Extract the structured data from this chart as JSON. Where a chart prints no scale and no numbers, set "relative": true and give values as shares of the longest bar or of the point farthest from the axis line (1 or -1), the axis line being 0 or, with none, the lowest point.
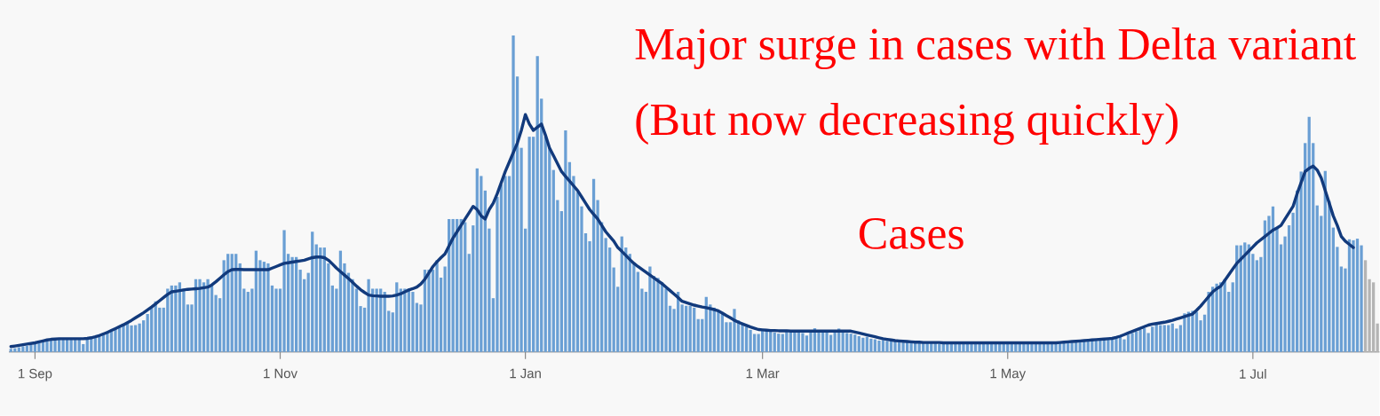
{
  "chart_data": {
    "type": "bar",
    "relative": true,
    "marker": "none",
    "annotations": [
      "Major surge in cases with Delta variant",
      "(But now decreasing quickly)",
      "Cases"
    ],
    "categories": [
      null,
      null,
      null,
      null,
      null,
      null,
      "1 Sep",
      null,
      null,
      null,
      null,
      null,
      null,
      null,
      null,
      null,
      null,
      null,
      null,
      null,
      null,
      null,
      null,
      null,
      null,
      null,
      null,
      null,
      null,
      null,
      null,
      null,
      null,
      null,
      null,
      null,
      null,
      null,
      null,
      null,
      null,
      null,
      null,
      null,
      null,
      null,
      null,
      null,
      null,
      null,
      null,
      null,
      null,
      null,
      null,
      null,
      null,
      null,
      null,
      null,
      null,
      null,
      null,
      null,
      null,
      null,
      null,
      "1 Nov",
      null,
      null,
      null,
      null,
      null,
      null,
      null,
      null,
      null,
      null,
      null,
      null,
      null,
      null,
      null,
      null,
      null,
      null,
      null,
      null,
      null,
      null,
      null,
      null,
      null,
      null,
      null,
      null,
      null,
      null,
      null,
      null,
      null,
      null,
      null,
      null,
      null,
      null,
      null,
      null,
      null,
      null,
      null,
      null,
      null,
      null,
      null,
      null,
      null,
      null,
      null,
      null,
      null,
      null,
      null,
      null,
      null,
      null,
      null,
      null,
      "1 Jan",
      null,
      null,
      null,
      null,
      null,
      null,
      null,
      null,
      null,
      null,
      null,
      null,
      null,
      null,
      null,
      null,
      null,
      null,
      null,
      null,
      null,
      null,
      null,
      null,
      null,
      null,
      null,
      null,
      null,
      null,
      null,
      null,
      null,
      null,
      null,
      null,
      null,
      null,
      null,
      null,
      null,
      null,
      null,
      null,
      null,
      null,
      null,
      null,
      null,
      null,
      null,
      null,
      null,
      null,
      null,
      null,
      null,
      null,
      "1 Mar",
      null,
      null,
      null,
      null,
      null,
      null,
      null,
      null,
      null,
      null,
      null,
      null,
      null,
      null,
      null,
      null,
      null,
      null,
      null,
      null,
      null,
      null,
      null,
      null,
      null,
      null,
      null,
      null,
      null,
      null,
      null,
      null,
      null,
      null,
      null,
      null,
      null,
      null,
      null,
      null,
      null,
      null,
      null,
      null,
      null,
      null,
      null,
      null,
      null,
      null,
      null,
      null,
      null,
      null,
      null,
      null,
      null,
      null,
      null,
      null,
      "1 May",
      null,
      null,
      null,
      null,
      null,
      null,
      null,
      null,
      null,
      null,
      null,
      null,
      null,
      null,
      null,
      null,
      null,
      null,
      null,
      null,
      null,
      null,
      null,
      null,
      null,
      null,
      null,
      null,
      null,
      null,
      null,
      null,
      null,
      null,
      null,
      null,
      null,
      null,
      null,
      null,
      null,
      null,
      null,
      null,
      null,
      null,
      null,
      null,
      null,
      null,
      null,
      null,
      null,
      null,
      null,
      null,
      null,
      null,
      null,
      null,
      "1 Jul",
      null,
      null,
      null,
      null,
      null,
      null,
      null,
      null,
      null,
      null,
      null,
      null,
      null,
      null,
      null,
      null,
      null,
      null,
      null,
      null,
      null,
      null,
      null,
      null,
      null,
      null,
      null,
      null,
      null,
      null,
      null
    ],
    "series": [
      {
        "colors": [
          "#6a9fd4",
          "#6a9fd4",
          "#6a9fd4",
          "#6a9fd4",
          "#6a9fd4",
          "#6a9fd4",
          "#6a9fd4",
          "#6a9fd4",
          "#6a9fd4",
          "#6a9fd4",
          "#6a9fd4",
          "#6a9fd4",
          "#6a9fd4",
          "#6a9fd4",
          "#6a9fd4",
          "#6a9fd4",
          "#6a9fd4",
          "#6a9fd4",
          "#6a9fd4",
          "#6a9fd4",
          "#6a9fd4",
          "#6a9fd4",
          "#6a9fd4",
          "#6a9fd4",
          "#6a9fd4",
          "#6a9fd4",
          "#6a9fd4",
          "#6a9fd4",
          "#6a9fd4",
          "#6a9fd4",
          "#6a9fd4",
          "#6a9fd4",
          "#6a9fd4",
          "#6a9fd4",
          "#6a9fd4",
          "#6a9fd4",
          "#6a9fd4",
          "#6a9fd4",
          "#6a9fd4",
          "#6a9fd4",
          "#6a9fd4",
          "#6a9fd4",
          "#6a9fd4",
          "#6a9fd4",
          "#6a9fd4",
          "#6a9fd4",
          "#6a9fd4",
          "#6a9fd4",
          "#6a9fd4",
          "#6a9fd4",
          "#6a9fd4",
          "#6a9fd4",
          "#6a9fd4",
          "#6a9fd4",
          "#6a9fd4",
          "#6a9fd4",
          "#6a9fd4",
          "#6a9fd4",
          "#6a9fd4",
          "#6a9fd4",
          "#6a9fd4",
          "#6a9fd4",
          "#6a9fd4",
          "#6a9fd4",
          "#6a9fd4",
          "#6a9fd4",
          "#6a9fd4",
          "#6a9fd4",
          "#6a9fd4",
          "#6a9fd4",
          "#6a9fd4",
          "#6a9fd4",
          "#6a9fd4",
          "#6a9fd4",
          "#6a9fd4",
          "#6a9fd4",
          "#6a9fd4",
          "#6a9fd4",
          "#6a9fd4",
          "#6a9fd4",
          "#6a9fd4",
          "#6a9fd4",
          "#6a9fd4",
          "#6a9fd4",
          "#6a9fd4",
          "#6a9fd4",
          "#6a9fd4",
          "#6a9fd4",
          "#6a9fd4",
          "#6a9fd4",
          "#6a9fd4",
          "#6a9fd4",
          "#6a9fd4",
          "#6a9fd4",
          "#6a9fd4",
          "#6a9fd4",
          "#6a9fd4",
          "#6a9fd4",
          "#6a9fd4",
          "#6a9fd4",
          "#6a9fd4",
          "#6a9fd4",
          "#6a9fd4",
          "#6a9fd4",
          "#6a9fd4",
          "#6a9fd4",
          "#6a9fd4",
          "#6a9fd4",
          "#6a9fd4",
          "#6a9fd4",
          "#6a9fd4",
          "#6a9fd4",
          "#6a9fd4",
          "#6a9fd4",
          "#6a9fd4",
          "#6a9fd4",
          "#6a9fd4",
          "#6a9fd4",
          "#6a9fd4",
          "#6a9fd4",
          "#6a9fd4",
          "#6a9fd4",
          "#6a9fd4",
          "#6a9fd4",
          "#6a9fd4",
          "#6a9fd4",
          "#6a9fd4",
          "#6a9fd4",
          "#6a9fd4",
          "#6a9fd4",
          "#6a9fd4",
          "#6a9fd4",
          "#6a9fd4",
          "#6a9fd4",
          "#6a9fd4",
          "#6a9fd4",
          "#6a9fd4",
          "#6a9fd4",
          "#6a9fd4",
          "#6a9fd4",
          "#6a9fd4",
          "#6a9fd4",
          "#6a9fd4",
          "#6a9fd4",
          "#6a9fd4",
          "#6a9fd4",
          "#6a9fd4",
          "#6a9fd4",
          "#6a9fd4",
          "#6a9fd4",
          "#6a9fd4",
          "#6a9fd4",
          "#6a9fd4",
          "#6a9fd4",
          "#6a9fd4",
          "#6a9fd4",
          "#6a9fd4",
          "#6a9fd4",
          "#6a9fd4",
          "#6a9fd4",
          "#6a9fd4",
          "#6a9fd4",
          "#6a9fd4",
          "#6a9fd4",
          "#6a9fd4",
          "#6a9fd4",
          "#6a9fd4",
          "#6a9fd4",
          "#6a9fd4",
          "#6a9fd4",
          "#6a9fd4",
          "#6a9fd4",
          "#6a9fd4",
          "#6a9fd4",
          "#6a9fd4",
          "#6a9fd4",
          "#6a9fd4",
          "#6a9fd4",
          "#6a9fd4",
          "#6a9fd4",
          "#6a9fd4",
          "#6a9fd4",
          "#6a9fd4",
          "#6a9fd4",
          "#6a9fd4",
          "#6a9fd4",
          "#6a9fd4",
          "#6a9fd4",
          "#6a9fd4",
          "#6a9fd4",
          "#6a9fd4",
          "#6a9fd4",
          "#6a9fd4",
          "#6a9fd4",
          "#6a9fd4",
          "#6a9fd4",
          "#6a9fd4",
          "#6a9fd4",
          "#6a9fd4",
          "#6a9fd4",
          "#6a9fd4",
          "#6a9fd4",
          "#6a9fd4",
          "#6a9fd4",
          "#6a9fd4",
          "#6a9fd4",
          "#6a9fd4",
          "#6a9fd4",
          "#6a9fd4",
          "#6a9fd4",
          "#6a9fd4",
          "#6a9fd4",
          "#6a9fd4",
          "#6a9fd4",
          "#6a9fd4",
          "#6a9fd4",
          "#6a9fd4",
          "#6a9fd4",
          "#6a9fd4",
          "#6a9fd4",
          "#6a9fd4",
          "#6a9fd4",
          "#6a9fd4",
          "#6a9fd4",
          "#6a9fd4",
          "#6a9fd4",
          "#6a9fd4",
          "#6a9fd4",
          "#6a9fd4",
          "#6a9fd4",
          "#6a9fd4",
          "#6a9fd4",
          "#6a9fd4",
          "#6a9fd4",
          "#6a9fd4",
          "#6a9fd4",
          "#6a9fd4",
          "#6a9fd4",
          "#6a9fd4",
          "#6a9fd4",
          "#6a9fd4",
          "#6a9fd4",
          "#6a9fd4",
          "#6a9fd4",
          "#6a9fd4",
          "#6a9fd4",
          "#6a9fd4",
          "#6a9fd4",
          "#6a9fd4",
          "#6a9fd4",
          "#6a9fd4",
          "#6a9fd4",
          "#6a9fd4",
          "#6a9fd4",
          "#6a9fd4",
          "#6a9fd4",
          "#6a9fd4",
          "#6a9fd4",
          "#6a9fd4",
          "#6a9fd4",
          "#6a9fd4",
          "#6a9fd4",
          "#6a9fd4",
          "#6a9fd4",
          "#6a9fd4",
          "#6a9fd4",
          "#6a9fd4",
          "#6a9fd4",
          "#6a9fd4",
          "#6a9fd4",
          "#6a9fd4",
          "#6a9fd4",
          "#6a9fd4",
          "#6a9fd4",
          "#6a9fd4",
          "#6a9fd4",
          "#6a9fd4",
          "#6a9fd4",
          "#6a9fd4",
          "#6a9fd4",
          "#6a9fd4",
          "#6a9fd4",
          "#6a9fd4",
          "#6a9fd4",
          "#6a9fd4",
          "#6a9fd4",
          "#6a9fd4",
          "#6a9fd4",
          "#6a9fd4",
          "#6a9fd4",
          "#6a9fd4",
          "#6a9fd4",
          "#6a9fd4",
          "#6a9fd4",
          "#6a9fd4",
          "#6a9fd4",
          "#6a9fd4",
          "#6a9fd4",
          "#6a9fd4",
          "#6a9fd4",
          "#6a9fd4",
          "#6a9fd4",
          "#6a9fd4",
          "#6a9fd4",
          "#6a9fd4",
          "#6a9fd4",
          "#6a9fd4",
          "#6a9fd4",
          "#6a9fd4",
          "#6a9fd4",
          "#6a9fd4",
          "#6a9fd4",
          "#6a9fd4",
          "#6a9fd4",
          "#6a9fd4",
          "#6a9fd4",
          "#6a9fd4",
          "#6a9fd4",
          "#6a9fd4",
          "#6a9fd4",
          "#6a9fd4",
          "#6a9fd4",
          "#6a9fd4",
          "#6a9fd4",
          "#6a9fd4",
          "#6a9fd4",
          "#6a9fd4",
          "#6a9fd4",
          "#6a9fd4",
          "#6a9fd4",
          "#6a9fd4",
          "#6a9fd4",
          "#6a9fd4",
          "#6a9fd4",
          "#6a9fd4",
          "#6a9fd4",
          "#6a9fd4",
          "#b4b4b4",
          "#b4b4b4",
          "#b4b4b4",
          "#b4b4b4"
        ],
        "values": [
          0.01,
          0.012,
          0.015,
          0.018,
          0.02,
          0.022,
          0.025,
          0.03,
          0.033,
          0.036,
          0.04,
          0.042,
          0.043,
          0.042,
          0.04,
          0.042,
          0.043,
          0.04,
          0.025,
          0.042,
          0.045,
          0.05,
          0.055,
          0.06,
          0.065,
          0.07,
          0.075,
          0.08,
          0.085,
          0.09,
          0.084,
          0.085,
          0.09,
          0.1,
          0.12,
          0.14,
          0.16,
          0.14,
          0.14,
          0.2,
          0.21,
          0.21,
          0.22,
          0.2,
          0.15,
          0.15,
          0.23,
          0.23,
          0.22,
          0.23,
          0.21,
          0.18,
          0.17,
          0.29,
          0.31,
          0.31,
          0.31,
          0.28,
          0.2,
          0.19,
          0.2,
          0.32,
          0.29,
          0.285,
          0.28,
          0.21,
          0.2,
          0.2,
          0.385,
          0.31,
          0.3,
          0.3,
          0.26,
          0.23,
          0.25,
          0.38,
          0.34,
          0.33,
          0.33,
          0.28,
          0.21,
          0.2,
          0.32,
          0.28,
          0.25,
          0.23,
          0.2,
          0.145,
          0.14,
          0.23,
          0.2,
          0.2,
          0.2,
          0.19,
          0.13,
          0.125,
          0.22,
          0.2,
          0.2,
          0.2,
          0.19,
          0.155,
          0.15,
          0.26,
          0.26,
          0.26,
          0.29,
          0.235,
          0.27,
          0.42,
          0.42,
          0.42,
          0.42,
          0.41,
          0.31,
          0.4,
          0.58,
          0.556,
          0.51,
          0.39,
          0.17,
          0.49,
          0.53,
          0.556,
          0.556,
          1.0,
          0.87,
          0.645,
          0.39,
          0.68,
          0.68,
          0.935,
          0.8,
          0.68,
          0.645,
          0.575,
          0.48,
          0.445,
          0.7,
          0.6,
          0.556,
          0.505,
          0.46,
          0.375,
          0.35,
          0.547,
          0.48,
          0.41,
          0.36,
          0.33,
          0.267,
          0.206,
          0.365,
          0.33,
          0.31,
          0.28,
          0.253,
          0.2,
          0.19,
          0.27,
          0.24,
          0.234,
          0.22,
          0.2,
          0.146,
          0.136,
          0.19,
          0.15,
          0.146,
          0.146,
          0.14,
          0.104,
          0.104,
          0.174,
          0.15,
          0.14,
          0.13,
          0.12,
          0.094,
          0.094,
          0.136,
          0.1,
          0.09,
          0.08,
          0.07,
          0.057,
          0.057,
          0.07,
          0.068,
          0.066,
          0.062,
          0.058,
          0.057,
          0.068,
          0.066,
          0.066,
          0.065,
          0.06,
          0.052,
          0.066,
          0.075,
          0.066,
          0.066,
          0.062,
          0.054,
          0.066,
          0.074,
          0.066,
          0.06,
          0.058,
          0.055,
          0.05,
          0.045,
          0.048,
          0.042,
          0.04,
          0.036,
          0.038,
          0.035,
          0.038,
          0.036,
          0.033,
          0.03,
          0.034,
          0.032,
          0.03,
          0.028,
          0.03,
          0.031,
          0.03,
          0.029,
          0.026,
          0.028,
          0.03,
          0.03,
          0.028,
          0.027,
          0.029,
          0.025,
          0.028,
          0.03,
          0.029,
          0.028,
          0.028,
          0.025,
          0.029,
          0.03,
          0.029,
          0.03,
          0.028,
          0.026,
          0.03,
          0.029,
          0.031,
          0.03,
          0.028,
          0.03,
          0.03,
          0.031,
          0.029,
          0.03,
          0.032,
          0.031,
          0.033,
          0.03,
          0.034,
          0.036,
          0.038,
          0.04,
          0.042,
          0.04,
          0.042,
          0.044,
          0.045,
          0.046,
          0.05,
          0.048,
          0.04,
          0.055,
          0.06,
          0.065,
          0.07,
          0.075,
          0.06,
          0.08,
          0.09,
          0.085,
          0.085,
          0.085,
          0.09,
          0.074,
          0.085,
          0.122,
          0.127,
          0.13,
          0.127,
          0.1,
          0.118,
          0.19,
          0.206,
          0.216,
          0.22,
          0.23,
          0.19,
          0.22,
          0.337,
          0.337,
          0.346,
          0.34,
          0.31,
          0.29,
          0.3,
          0.416,
          0.43,
          0.46,
          0.39,
          0.34,
          0.365,
          0.4,
          0.44,
          0.51,
          0.57,
          0.66,
          0.743,
          0.66,
          0.463,
          0.43,
          0.572,
          0.477,
          0.393,
          0.332,
          0.27,
          0.264,
          0.356,
          0.353,
          0.358,
          0.337,
          0.29,
          0.23,
          0.22,
          0.09
        ]
      },
      {
        "type": "line",
        "color": "#123a7c",
        "values": [
          0.017,
          0.019,
          0.021,
          0.023,
          0.025,
          0.027,
          0.029,
          0.032,
          0.035,
          0.038,
          0.04,
          0.041,
          0.042,
          0.042,
          0.042,
          0.042,
          0.042,
          0.042,
          0.042,
          0.043,
          0.045,
          0.048,
          0.052,
          0.057,
          0.062,
          0.068,
          0.074,
          0.08,
          0.086,
          0.093,
          0.1,
          0.108,
          0.116,
          0.124,
          0.133,
          0.142,
          0.152,
          0.162,
          0.172,
          0.182,
          0.19,
          0.192,
          0.194,
          0.196,
          0.198,
          0.199,
          0.2,
          0.201,
          0.203,
          0.205,
          0.212,
          0.222,
          0.233,
          0.244,
          0.254,
          0.26,
          0.261,
          0.261,
          0.26,
          0.26,
          0.26,
          0.26,
          0.26,
          0.26,
          0.26,
          0.265,
          0.27,
          0.275,
          0.28,
          0.282,
          0.284,
          0.286,
          0.288,
          0.29,
          0.294,
          0.298,
          0.3,
          0.3,
          0.298,
          0.29,
          0.278,
          0.265,
          0.254,
          0.243,
          0.232,
          0.22,
          0.208,
          0.197,
          0.188,
          0.18,
          0.178,
          0.177,
          0.176,
          0.176,
          0.176,
          0.177,
          0.18,
          0.184,
          0.19,
          0.196,
          0.2,
          0.205,
          0.215,
          0.23,
          0.25,
          0.27,
          0.285,
          0.298,
          0.31,
          0.335,
          0.36,
          0.38,
          0.4,
          0.42,
          0.44,
          0.46,
          0.45,
          0.43,
          0.42,
          0.45,
          0.47,
          0.5,
          0.535,
          0.57,
          0.6,
          0.63,
          0.66,
          0.7,
          0.75,
          0.72,
          0.7,
          0.71,
          0.72,
          0.685,
          0.645,
          0.62,
          0.595,
          0.57,
          0.555,
          0.54,
          0.525,
          0.51,
          0.49,
          0.47,
          0.45,
          0.435,
          0.42,
          0.4,
          0.38,
          0.365,
          0.35,
          0.33,
          0.318,
          0.305,
          0.292,
          0.28,
          0.27,
          0.261,
          0.252,
          0.243,
          0.234,
          0.225,
          0.216,
          0.205,
          0.194,
          0.183,
          0.172,
          0.16,
          0.156,
          0.152,
          0.148,
          0.145,
          0.142,
          0.14,
          0.137,
          0.134,
          0.13,
          0.123,
          0.115,
          0.108,
          0.1,
          0.094,
          0.089,
          0.084,
          0.079,
          0.075,
          0.071,
          0.07,
          0.069,
          0.068,
          0.068,
          0.067,
          0.067,
          0.067,
          0.066,
          0.066,
          0.066,
          0.066,
          0.066,
          0.066,
          0.066,
          0.066,
          0.066,
          0.066,
          0.066,
          0.066,
          0.066,
          0.066,
          0.066,
          0.066,
          0.063,
          0.06,
          0.057,
          0.054,
          0.051,
          0.048,
          0.045,
          0.042,
          0.04,
          0.038,
          0.036,
          0.035,
          0.034,
          0.033,
          0.032,
          0.031,
          0.031,
          0.03,
          0.03,
          0.03,
          0.03,
          0.03,
          0.029,
          0.029,
          0.029,
          0.029,
          0.029,
          0.029,
          0.029,
          0.029,
          0.029,
          0.029,
          0.029,
          0.029,
          0.029,
          0.029,
          0.029,
          0.029,
          0.029,
          0.029,
          0.029,
          0.029,
          0.029,
          0.029,
          0.029,
          0.029,
          0.029,
          0.029,
          0.029,
          0.029,
          0.029,
          0.03,
          0.031,
          0.032,
          0.033,
          0.034,
          0.035,
          0.036,
          0.037,
          0.038,
          0.039,
          0.04,
          0.041,
          0.042,
          0.043,
          0.046,
          0.05,
          0.055,
          0.06,
          0.065,
          0.07,
          0.075,
          0.08,
          0.085,
          0.088,
          0.09,
          0.092,
          0.094,
          0.097,
          0.1,
          0.104,
          0.108,
          0.112,
          0.116,
          0.12,
          0.132,
          0.145,
          0.16,
          0.175,
          0.19,
          0.2,
          0.208,
          0.226,
          0.244,
          0.262,
          0.28,
          0.293,
          0.306,
          0.319,
          0.332,
          0.345,
          0.355,
          0.365,
          0.375,
          0.385,
          0.392,
          0.4,
          0.42,
          0.44,
          0.46,
          0.5,
          0.535,
          0.57,
          0.58,
          0.587,
          0.575,
          0.55,
          0.51,
          0.47,
          0.43,
          0.4,
          0.365,
          0.35,
          0.34,
          0.33,
          null,
          null,
          null,
          null,
          null,
          null
        ]
      }
    ]
  }
}
